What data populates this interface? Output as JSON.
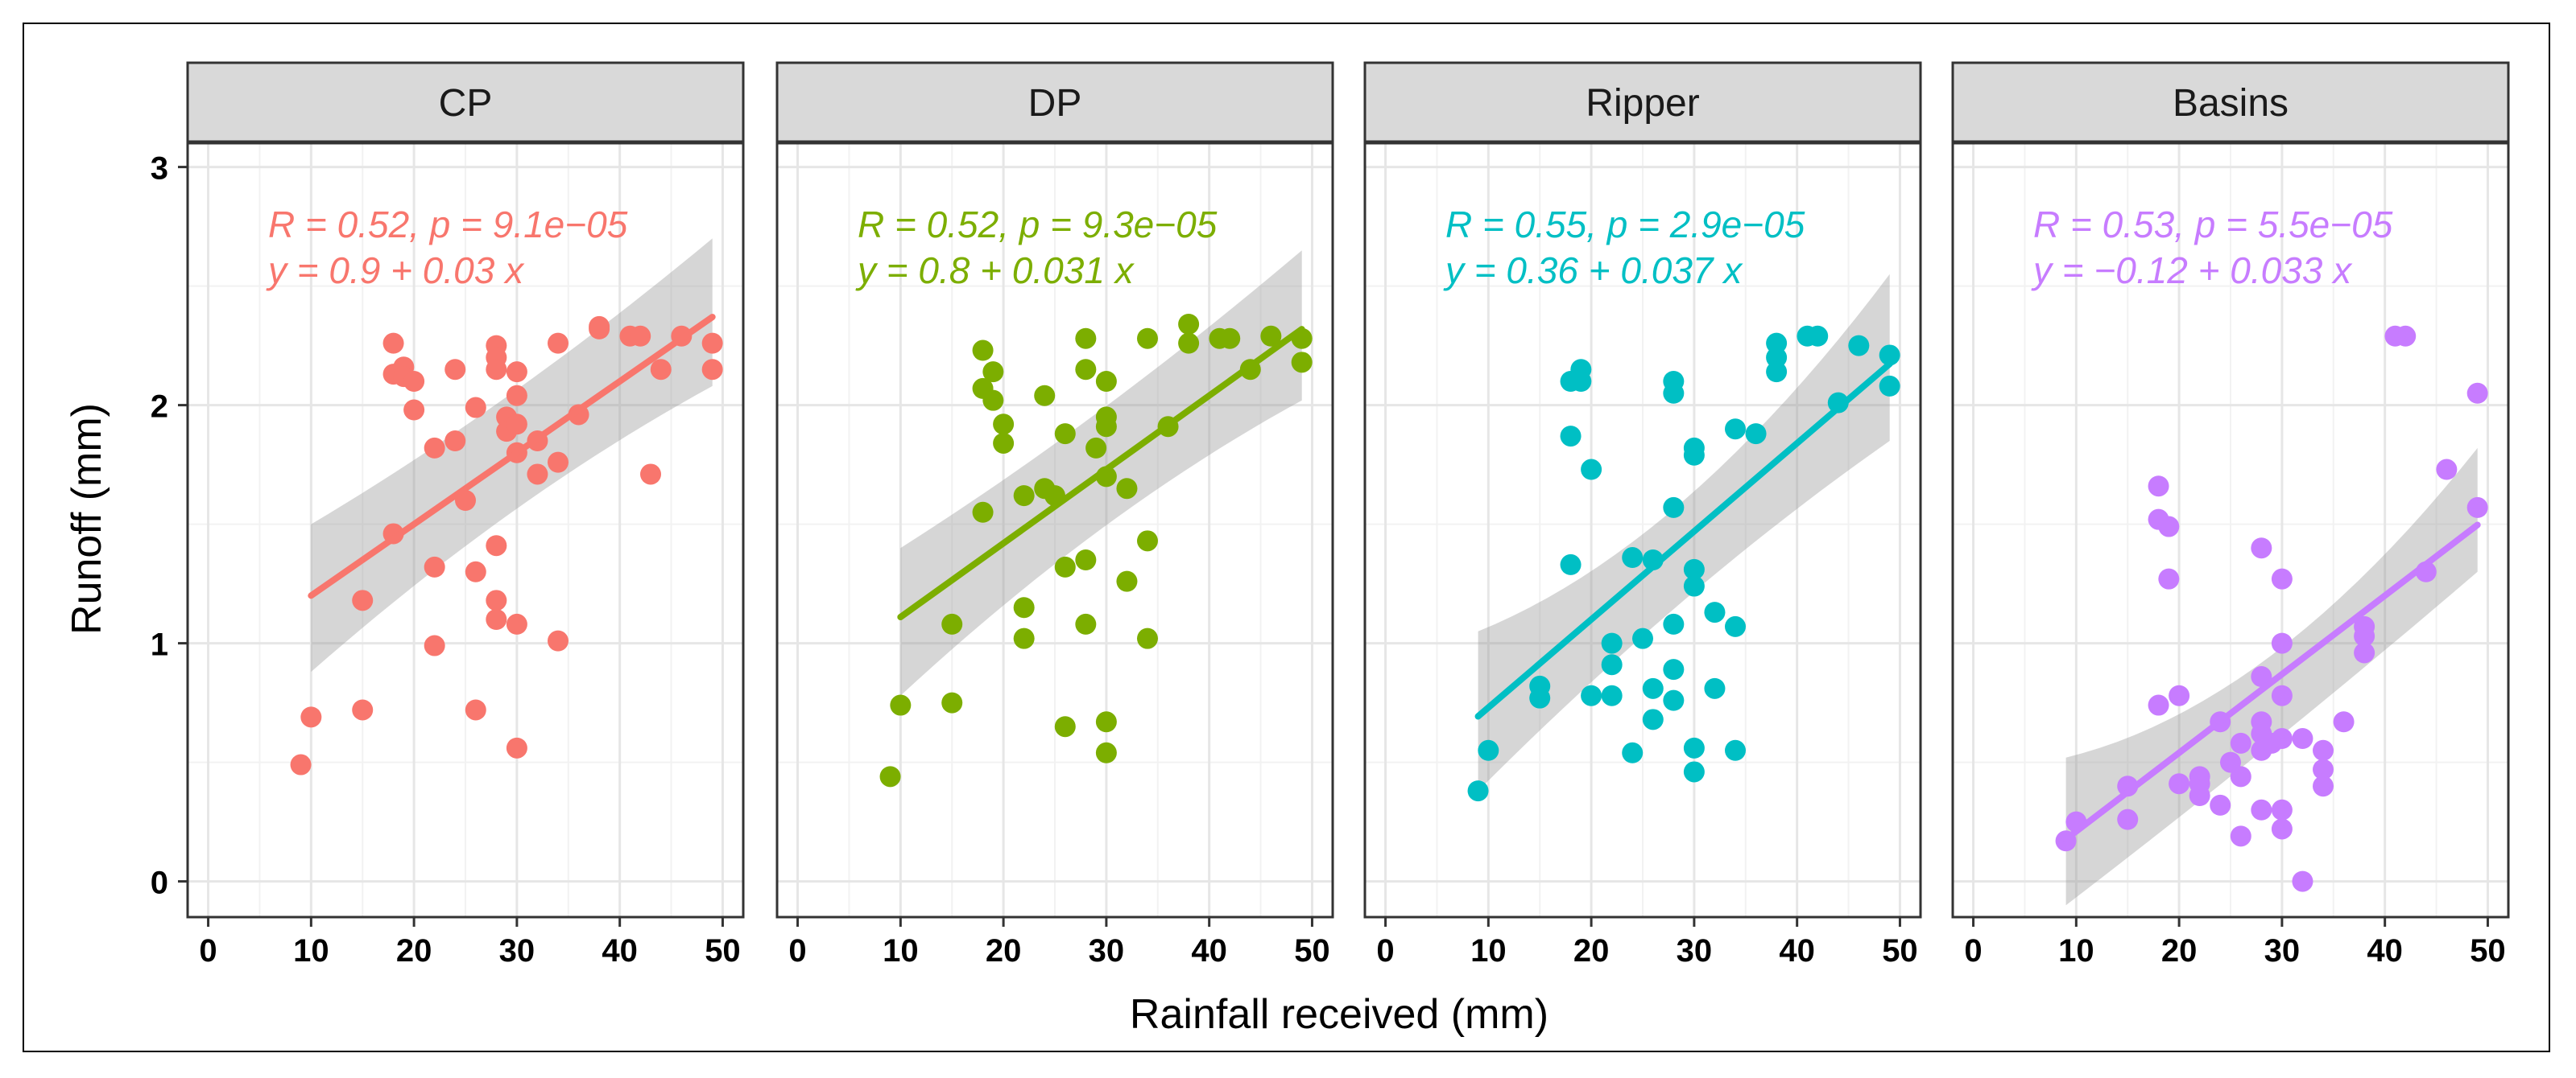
{
  "chart_data": {
    "type": "scatter",
    "xlabel": "Rainfall received (mm)",
    "ylabel": "Runoff (mm)",
    "xlim": [
      -2,
      52
    ],
    "ylim": [
      -0.15,
      3.1
    ],
    "x_ticks": [
      0,
      10,
      20,
      30,
      40,
      50
    ],
    "y_ticks": [
      0,
      1,
      2,
      3
    ],
    "grid": true,
    "legend": "none",
    "panels": [
      {
        "name": "CP",
        "color": "#F8766D",
        "stat_r": "R = 0.52, p = 9.1e−05",
        "stat_eq": "y = 0.9 + 0.03 x",
        "intercept": 0.9,
        "slope": 0.03,
        "fit_range": [
          10,
          49
        ],
        "ci_lower": [
          0.88,
          1.55,
          2.08
        ],
        "ci_upper": [
          1.5,
          2.05,
          2.7
        ],
        "points": [
          [
            9,
            0.49
          ],
          [
            10,
            0.69
          ],
          [
            15,
            0.72
          ],
          [
            15,
            1.18
          ],
          [
            18,
            2.26
          ],
          [
            18,
            2.13
          ],
          [
            18,
            1.46
          ],
          [
            19,
            2.16
          ],
          [
            19,
            2.12
          ],
          [
            20,
            2.1
          ],
          [
            20,
            1.98
          ],
          [
            22,
            1.32
          ],
          [
            22,
            1.82
          ],
          [
            22,
            0.99
          ],
          [
            24,
            2.15
          ],
          [
            24,
            1.85
          ],
          [
            25,
            1.6
          ],
          [
            26,
            1.99
          ],
          [
            26,
            1.3
          ],
          [
            26,
            0.72
          ],
          [
            28,
            2.25
          ],
          [
            28,
            2.2
          ],
          [
            28,
            2.15
          ],
          [
            28,
            1.41
          ],
          [
            28,
            1.18
          ],
          [
            28,
            1.1
          ],
          [
            29,
            1.95
          ],
          [
            29,
            1.89
          ],
          [
            30,
            2.14
          ],
          [
            30,
            2.04
          ],
          [
            30,
            1.92
          ],
          [
            30,
            1.8
          ],
          [
            30,
            1.08
          ],
          [
            30,
            0.56
          ],
          [
            32,
            1.85
          ],
          [
            32,
            1.71
          ],
          [
            34,
            2.26
          ],
          [
            34,
            1.76
          ],
          [
            34,
            1.01
          ],
          [
            36,
            1.96
          ],
          [
            38,
            2.33
          ],
          [
            38,
            2.32
          ],
          [
            41,
            2.29
          ],
          [
            42,
            2.29
          ],
          [
            43,
            1.71
          ],
          [
            44,
            2.15
          ],
          [
            46,
            2.29
          ],
          [
            49,
            2.26
          ],
          [
            49,
            2.15
          ]
        ]
      },
      {
        "name": "DP",
        "color": "#7CAE00",
        "stat_r": "R = 0.52, p = 9.3e−05",
        "stat_eq": "y = 0.8 + 0.031 x",
        "intercept": 0.8,
        "slope": 0.031,
        "fit_range": [
          10,
          49
        ],
        "ci_lower": [
          0.78,
          1.48,
          2.02
        ],
        "ci_upper": [
          1.4,
          1.98,
          2.65
        ],
        "points": [
          [
            9,
            0.44
          ],
          [
            10,
            0.74
          ],
          [
            15,
            1.08
          ],
          [
            15,
            0.75
          ],
          [
            18,
            2.23
          ],
          [
            18,
            2.07
          ],
          [
            18,
            1.55
          ],
          [
            19,
            2.14
          ],
          [
            19,
            2.02
          ],
          [
            20,
            1.92
          ],
          [
            20,
            1.84
          ],
          [
            22,
            1.62
          ],
          [
            22,
            1.15
          ],
          [
            22,
            1.02
          ],
          [
            24,
            2.04
          ],
          [
            24,
            1.65
          ],
          [
            25,
            1.62
          ],
          [
            26,
            1.88
          ],
          [
            26,
            1.32
          ],
          [
            26,
            0.65
          ],
          [
            28,
            2.28
          ],
          [
            28,
            2.15
          ],
          [
            28,
            1.35
          ],
          [
            28,
            1.08
          ],
          [
            29,
            1.82
          ],
          [
            30,
            2.1
          ],
          [
            30,
            1.95
          ],
          [
            30,
            1.91
          ],
          [
            30,
            1.7
          ],
          [
            30,
            0.67
          ],
          [
            30,
            0.54
          ],
          [
            32,
            1.65
          ],
          [
            32,
            1.26
          ],
          [
            34,
            2.28
          ],
          [
            34,
            1.43
          ],
          [
            34,
            1.02
          ],
          [
            36,
            1.91
          ],
          [
            38,
            2.34
          ],
          [
            38,
            2.26
          ],
          [
            41,
            2.28
          ],
          [
            42,
            2.28
          ],
          [
            44,
            2.15
          ],
          [
            46,
            2.29
          ],
          [
            49,
            2.28
          ],
          [
            49,
            2.18
          ]
        ]
      },
      {
        "name": "Ripper",
        "color": "#00BFC4",
        "stat_r": "R = 0.55, p = 2.9e−05",
        "stat_eq": "y = 0.36 + 0.037 x",
        "intercept": 0.36,
        "slope": 0.037,
        "fit_range": [
          9,
          49
        ],
        "ci_lower": [
          0.38,
          1.18,
          1.85
        ],
        "ci_upper": [
          1.05,
          1.6,
          2.55
        ],
        "points": [
          [
            9,
            0.38
          ],
          [
            10,
            0.55
          ],
          [
            15,
            0.82
          ],
          [
            15,
            0.77
          ],
          [
            18,
            2.1
          ],
          [
            18,
            1.87
          ],
          [
            18,
            1.33
          ],
          [
            19,
            2.15
          ],
          [
            19,
            2.1
          ],
          [
            20,
            1.73
          ],
          [
            20,
            0.78
          ],
          [
            22,
            1.0
          ],
          [
            22,
            0.91
          ],
          [
            22,
            0.78
          ],
          [
            24,
            1.36
          ],
          [
            24,
            0.54
          ],
          [
            25,
            1.02
          ],
          [
            26,
            1.35
          ],
          [
            26,
            0.81
          ],
          [
            26,
            0.68
          ],
          [
            28,
            2.1
          ],
          [
            28,
            2.05
          ],
          [
            28,
            1.57
          ],
          [
            28,
            1.08
          ],
          [
            28,
            0.89
          ],
          [
            28,
            0.76
          ],
          [
            30,
            1.82
          ],
          [
            30,
            1.79
          ],
          [
            30,
            1.31
          ],
          [
            30,
            1.24
          ],
          [
            30,
            0.56
          ],
          [
            30,
            0.46
          ],
          [
            32,
            1.13
          ],
          [
            32,
            0.81
          ],
          [
            34,
            1.9
          ],
          [
            34,
            1.07
          ],
          [
            34,
            0.55
          ],
          [
            36,
            1.88
          ],
          [
            38,
            2.26
          ],
          [
            38,
            2.2
          ],
          [
            38,
            2.14
          ],
          [
            41,
            2.29
          ],
          [
            42,
            2.29
          ],
          [
            44,
            2.01
          ],
          [
            46,
            2.25
          ],
          [
            49,
            2.21
          ],
          [
            49,
            2.08
          ]
        ]
      },
      {
        "name": "Basins",
        "color": "#C77CFF",
        "stat_r": "R = 0.53, p = 5.5e−05",
        "stat_eq": "y = −0.12 + 0.033 x",
        "intercept": -0.12,
        "slope": 0.033,
        "fit_range": [
          9,
          49
        ],
        "ci_lower": [
          -0.1,
          0.58,
          1.3
        ],
        "ci_upper": [
          0.52,
          0.95,
          1.82
        ],
        "points": [
          [
            9,
            0.17
          ],
          [
            10,
            0.25
          ],
          [
            15,
            0.4
          ],
          [
            15,
            0.26
          ],
          [
            18,
            1.66
          ],
          [
            18,
            1.52
          ],
          [
            18,
            0.74
          ],
          [
            19,
            1.49
          ],
          [
            19,
            1.27
          ],
          [
            20,
            0.78
          ],
          [
            20,
            0.41
          ],
          [
            22,
            0.44
          ],
          [
            22,
            0.41
          ],
          [
            22,
            0.36
          ],
          [
            24,
            0.67
          ],
          [
            24,
            0.32
          ],
          [
            25,
            0.5
          ],
          [
            26,
            0.58
          ],
          [
            26,
            0.44
          ],
          [
            26,
            0.19
          ],
          [
            28,
            1.4
          ],
          [
            28,
            0.86
          ],
          [
            28,
            0.67
          ],
          [
            28,
            0.62
          ],
          [
            28,
            0.55
          ],
          [
            28,
            0.3
          ],
          [
            29,
            0.58
          ],
          [
            30,
            1.27
          ],
          [
            30,
            1.0
          ],
          [
            30,
            0.78
          ],
          [
            30,
            0.6
          ],
          [
            30,
            0.3
          ],
          [
            30,
            0.22
          ],
          [
            32,
            0.6
          ],
          [
            32,
            0.0
          ],
          [
            34,
            0.55
          ],
          [
            34,
            0.47
          ],
          [
            34,
            0.4
          ],
          [
            36,
            0.67
          ],
          [
            38,
            1.07
          ],
          [
            38,
            1.03
          ],
          [
            38,
            0.96
          ],
          [
            41,
            2.29
          ],
          [
            42,
            2.29
          ],
          [
            44,
            1.3
          ],
          [
            46,
            1.73
          ],
          [
            49,
            2.05
          ],
          [
            49,
            1.57
          ]
        ]
      }
    ]
  }
}
